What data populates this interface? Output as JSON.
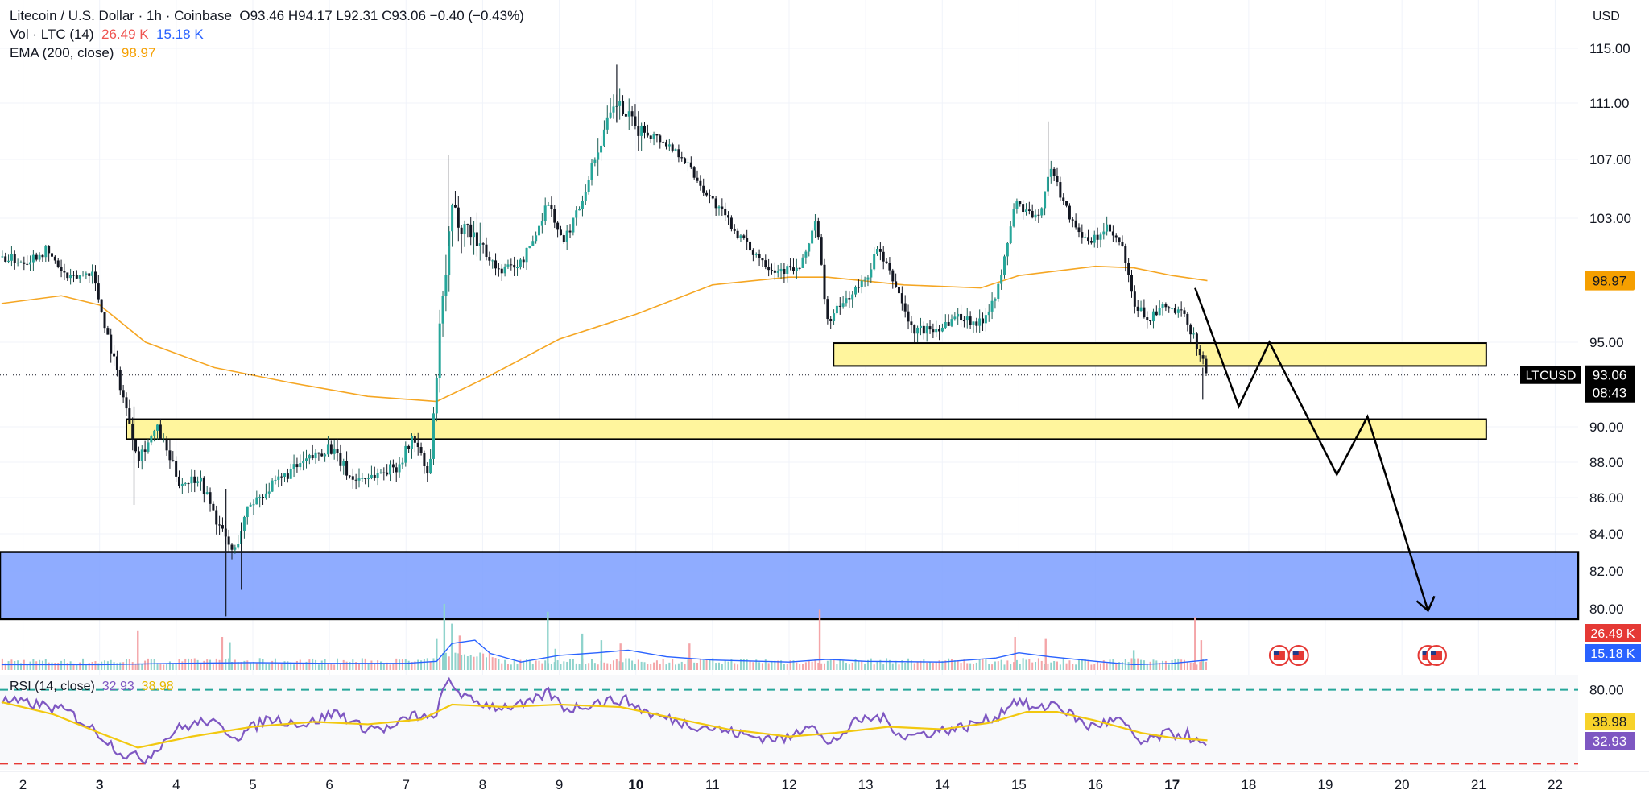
{
  "header": {
    "symbol": "Litecoin / U.S. Dollar · 1h · Coinbase",
    "ohlc": "O93.46 H94.17 L92.31 C93.06 −0.40 (−0.43%)",
    "vol_label": "Vol · LTC (14)",
    "vol_value_1": "26.49 K",
    "vol_value_2": "15.18 K",
    "ema_label": "EMA (200, close)",
    "ema_value": "98.97",
    "currency": "USD"
  },
  "rsi_legend": {
    "label": "RSI (14, close)",
    "rsi_value": "32.93",
    "ma_value": "38.98"
  },
  "colors": {
    "up": "#26a69a",
    "down": "#131722",
    "ema": "#f5a623",
    "zone_fill": "#fff59d",
    "demand_fill": "#7b9dff",
    "vol_up": "#8fd3cc",
    "vol_down": "#f4a5a8",
    "vol_ma": "#2962ff",
    "rsi": "#7e57c2",
    "rsi_ma": "#f2c80f"
  },
  "chart_data": {
    "type": "candlestick",
    "x_range": [
      1.7,
      22.3
    ],
    "x_ticks": [
      {
        "x": 2,
        "label": "2",
        "bold": false
      },
      {
        "x": 3,
        "label": "3",
        "bold": true
      },
      {
        "x": 4,
        "label": "4",
        "bold": false
      },
      {
        "x": 5,
        "label": "5",
        "bold": false
      },
      {
        "x": 6,
        "label": "6",
        "bold": false
      },
      {
        "x": 7,
        "label": "7",
        "bold": false
      },
      {
        "x": 8,
        "label": "8",
        "bold": false
      },
      {
        "x": 9,
        "label": "9",
        "bold": false
      },
      {
        "x": 10,
        "label": "10",
        "bold": true
      },
      {
        "x": 11,
        "label": "11",
        "bold": false
      },
      {
        "x": 12,
        "label": "12",
        "bold": false
      },
      {
        "x": 13,
        "label": "13",
        "bold": false
      },
      {
        "x": 14,
        "label": "14",
        "bold": false
      },
      {
        "x": 15,
        "label": "15",
        "bold": false
      },
      {
        "x": 16,
        "label": "16",
        "bold": false
      },
      {
        "x": 17,
        "label": "17",
        "bold": true
      },
      {
        "x": 18,
        "label": "18",
        "bold": false
      },
      {
        "x": 19,
        "label": "19",
        "bold": false
      },
      {
        "x": 20,
        "label": "20",
        "bold": false
      },
      {
        "x": 21,
        "label": "21",
        "bold": false
      },
      {
        "x": 22,
        "label": "22",
        "bold": false
      }
    ],
    "price_axis": {
      "ticks": [
        {
          "value": 115,
          "label": "115.00"
        },
        {
          "value": 111,
          "label": "111.00"
        },
        {
          "value": 107,
          "label": "107.00"
        },
        {
          "value": 103,
          "label": "103.00"
        },
        {
          "value": 95,
          "label": "95.00"
        },
        {
          "value": 90,
          "label": "90.00"
        },
        {
          "value": 88,
          "label": "88.00"
        },
        {
          "value": 86,
          "label": "86.00"
        },
        {
          "value": 84,
          "label": "84.00"
        },
        {
          "value": 82,
          "label": "82.00"
        },
        {
          "value": 80,
          "label": "80.00"
        }
      ],
      "scale_anchors": [
        {
          "value": 115,
          "y": 60
        },
        {
          "value": 111,
          "y": 128
        },
        {
          "value": 107,
          "y": 198
        },
        {
          "value": 103,
          "y": 271
        },
        {
          "value": 99,
          "y": 348
        },
        {
          "value": 95,
          "y": 425
        },
        {
          "value": 90,
          "y": 530
        },
        {
          "value": 88,
          "y": 574
        },
        {
          "value": 86,
          "y": 618
        },
        {
          "value": 84,
          "y": 663
        },
        {
          "value": 82,
          "y": 709
        },
        {
          "value": 80,
          "y": 756
        }
      ]
    },
    "price_keypoints": [
      [
        1.72,
        100.5
      ],
      [
        2.0,
        100.2
      ],
      [
        2.3,
        100.9
      ],
      [
        2.6,
        99.0
      ],
      [
        2.9,
        99.6
      ],
      [
        3.1,
        95.5
      ],
      [
        3.25,
        92.8
      ],
      [
        3.5,
        88.3
      ],
      [
        3.75,
        89.9
      ],
      [
        4.05,
        86.8
      ],
      [
        4.3,
        87.2
      ],
      [
        4.55,
        84.5
      ],
      [
        4.75,
        82.9
      ],
      [
        4.95,
        85.6
      ],
      [
        5.15,
        86.3
      ],
      [
        5.5,
        87.5
      ],
      [
        6.0,
        88.9
      ],
      [
        6.3,
        87.0
      ],
      [
        6.6,
        87.3
      ],
      [
        6.9,
        87.8
      ],
      [
        7.1,
        89.5
      ],
      [
        7.3,
        87.0
      ],
      [
        7.45,
        96.0
      ],
      [
        7.6,
        103.4
      ],
      [
        7.9,
        101.9
      ],
      [
        8.2,
        99.6
      ],
      [
        8.5,
        100.1
      ],
      [
        8.7,
        102.0
      ],
      [
        8.85,
        104.2
      ],
      [
        9.05,
        101.3
      ],
      [
        9.3,
        104.3
      ],
      [
        9.55,
        108.5
      ],
      [
        9.75,
        111.0
      ],
      [
        10.0,
        109.2
      ],
      [
        10.3,
        108.5
      ],
      [
        10.6,
        107.3
      ],
      [
        10.85,
        105.2
      ],
      [
        11.15,
        103.2
      ],
      [
        11.45,
        101.2
      ],
      [
        11.8,
        99.7
      ],
      [
        12.15,
        99.7
      ],
      [
        12.35,
        103.0
      ],
      [
        12.5,
        96.3
      ],
      [
        12.75,
        97.8
      ],
      [
        13.0,
        99.0
      ],
      [
        13.15,
        101.0
      ],
      [
        13.4,
        98.6
      ],
      [
        13.6,
        95.8
      ],
      [
        13.9,
        95.8
      ],
      [
        14.2,
        96.7
      ],
      [
        14.5,
        96.2
      ],
      [
        14.75,
        98.7
      ],
      [
        14.95,
        104.1
      ],
      [
        15.25,
        102.8
      ],
      [
        15.4,
        106.5
      ],
      [
        15.65,
        103.3
      ],
      [
        15.9,
        101.3
      ],
      [
        16.15,
        102.3
      ],
      [
        16.35,
        101.1
      ],
      [
        16.5,
        97.4
      ],
      [
        16.7,
        96.5
      ],
      [
        16.9,
        97.3
      ],
      [
        17.15,
        96.7
      ],
      [
        17.3,
        95.2
      ],
      [
        17.46,
        93.06
      ]
    ],
    "ema_200": [
      [
        1.72,
        97.5
      ],
      [
        2.5,
        98.0
      ],
      [
        3.0,
        97.4
      ],
      [
        3.6,
        95.0
      ],
      [
        4.5,
        93.5
      ],
      [
        5.5,
        92.6
      ],
      [
        6.5,
        91.8
      ],
      [
        7.4,
        91.5
      ],
      [
        8.0,
        92.8
      ],
      [
        9.0,
        95.2
      ],
      [
        10.0,
        96.8
      ],
      [
        11.0,
        98.7
      ],
      [
        12.0,
        99.2
      ],
      [
        12.5,
        99.2
      ],
      [
        13.5,
        98.7
      ],
      [
        14.5,
        98.5
      ],
      [
        15.0,
        99.3
      ],
      [
        16.0,
        99.9
      ],
      [
        16.5,
        99.8
      ],
      [
        17.0,
        99.3
      ],
      [
        17.46,
        98.97
      ]
    ],
    "zones": [
      {
        "x0": 12.58,
        "x1": 21.1,
        "y_low": 93.6,
        "y_high": 94.95,
        "kind": "resistance"
      },
      {
        "x0": 3.35,
        "x1": 21.1,
        "y_low": 89.3,
        "y_high": 90.45,
        "kind": "resistance"
      },
      {
        "x0": 1.7,
        "x1": 22.3,
        "y_low": 79.45,
        "y_high": 83.02,
        "kind": "demand"
      }
    ],
    "projection": [
      [
        17.3,
        98.5
      ],
      [
        17.87,
        91.2
      ],
      [
        18.27,
        95.0
      ],
      [
        19.15,
        87.3
      ],
      [
        19.55,
        90.6
      ],
      [
        20.34,
        79.9
      ]
    ],
    "arrow_tip": [
      20.34,
      79.9
    ],
    "volume_axis": {
      "max": 100,
      "baseline_y": 832,
      "top_y": 750
    },
    "volume_spikes": [
      {
        "x": 3.5,
        "v": 60,
        "up": false
      },
      {
        "x": 4.6,
        "v": 50,
        "up": false
      },
      {
        "x": 4.7,
        "v": 42,
        "up": true
      },
      {
        "x": 7.4,
        "v": 48,
        "up": true
      },
      {
        "x": 7.5,
        "v": 100,
        "up": true
      },
      {
        "x": 7.6,
        "v": 70,
        "up": true
      },
      {
        "x": 7.7,
        "v": 52,
        "up": false
      },
      {
        "x": 8.85,
        "v": 88,
        "up": true
      },
      {
        "x": 8.95,
        "v": 32,
        "up": true
      },
      {
        "x": 9.3,
        "v": 55,
        "up": true
      },
      {
        "x": 9.55,
        "v": 45,
        "up": true
      },
      {
        "x": 9.8,
        "v": 40,
        "up": false
      },
      {
        "x": 10.7,
        "v": 40,
        "up": false
      },
      {
        "x": 12.4,
        "v": 92,
        "up": false
      },
      {
        "x": 14.95,
        "v": 50,
        "up": false
      },
      {
        "x": 15.35,
        "v": 48,
        "up": false
      },
      {
        "x": 16.5,
        "v": 30,
        "up": true
      },
      {
        "x": 17.3,
        "v": 80,
        "up": false
      },
      {
        "x": 17.38,
        "v": 45,
        "up": false
      }
    ],
    "volume_ma": [
      [
        1.72,
        8
      ],
      [
        3.0,
        8
      ],
      [
        4.0,
        10
      ],
      [
        5.0,
        11
      ],
      [
        6.0,
        10
      ],
      [
        7.0,
        10
      ],
      [
        7.4,
        13
      ],
      [
        7.6,
        40
      ],
      [
        7.9,
        45
      ],
      [
        8.1,
        25
      ],
      [
        8.5,
        12
      ],
      [
        9.0,
        22
      ],
      [
        9.5,
        26
      ],
      [
        9.9,
        30
      ],
      [
        10.4,
        20
      ],
      [
        11.0,
        15
      ],
      [
        12.0,
        12
      ],
      [
        12.5,
        16
      ],
      [
        13.0,
        13
      ],
      [
        14.0,
        12
      ],
      [
        14.7,
        18
      ],
      [
        15.0,
        26
      ],
      [
        15.4,
        20
      ],
      [
        16.0,
        13
      ],
      [
        16.5,
        8
      ],
      [
        17.0,
        10
      ],
      [
        17.46,
        15
      ]
    ],
    "event_icons_x": [
      18.4,
      18.65,
      20.34,
      20.45
    ],
    "rsi_axis": {
      "ticks": [
        {
          "value": 80,
          "label": "80.00"
        }
      ],
      "upper": 80,
      "lower": 20,
      "y_at_100": 826,
      "y_at_0": 979
    },
    "rsi_keypoints": [
      [
        1.72,
        71
      ],
      [
        2.2,
        68
      ],
      [
        2.6,
        62
      ],
      [
        3.0,
        44
      ],
      [
        3.3,
        28
      ],
      [
        3.6,
        24
      ],
      [
        4.0,
        48
      ],
      [
        4.4,
        55
      ],
      [
        4.8,
        42
      ],
      [
        5.2,
        57
      ],
      [
        5.7,
        52
      ],
      [
        6.1,
        62
      ],
      [
        6.4,
        50
      ],
      [
        6.8,
        48
      ],
      [
        7.1,
        60
      ],
      [
        7.35,
        55
      ],
      [
        7.55,
        88
      ],
      [
        7.8,
        72
      ],
      [
        8.2,
        66
      ],
      [
        8.6,
        68
      ],
      [
        8.85,
        78
      ],
      [
        9.1,
        64
      ],
      [
        9.5,
        70
      ],
      [
        9.85,
        72
      ],
      [
        10.2,
        60
      ],
      [
        10.7,
        52
      ],
      [
        11.0,
        49
      ],
      [
        11.5,
        42
      ],
      [
        12.0,
        40
      ],
      [
        12.3,
        55
      ],
      [
        12.5,
        34
      ],
      [
        12.9,
        55
      ],
      [
        13.2,
        58
      ],
      [
        13.5,
        42
      ],
      [
        13.9,
        46
      ],
      [
        14.3,
        50
      ],
      [
        14.7,
        58
      ],
      [
        14.95,
        72
      ],
      [
        15.25,
        63
      ],
      [
        15.45,
        70
      ],
      [
        15.9,
        50
      ],
      [
        16.3,
        56
      ],
      [
        16.6,
        36
      ],
      [
        16.9,
        44
      ],
      [
        17.2,
        44
      ],
      [
        17.3,
        38
      ],
      [
        17.46,
        32.93
      ]
    ],
    "rsi_ma_keypoints": [
      [
        1.72,
        70
      ],
      [
        2.4,
        60
      ],
      [
        3.0,
        45
      ],
      [
        3.5,
        33
      ],
      [
        4.2,
        42
      ],
      [
        5.0,
        50
      ],
      [
        5.8,
        54
      ],
      [
        6.5,
        52
      ],
      [
        7.2,
        56
      ],
      [
        7.6,
        68
      ],
      [
        8.3,
        66
      ],
      [
        9.0,
        68
      ],
      [
        9.8,
        66
      ],
      [
        10.5,
        57
      ],
      [
        11.2,
        48
      ],
      [
        12.0,
        42
      ],
      [
        12.6,
        45
      ],
      [
        13.3,
        50
      ],
      [
        14.0,
        48
      ],
      [
        14.6,
        53
      ],
      [
        15.1,
        62
      ],
      [
        15.5,
        62
      ],
      [
        16.0,
        55
      ],
      [
        16.6,
        45
      ],
      [
        17.0,
        41
      ],
      [
        17.46,
        38.98
      ]
    ]
  },
  "price_labels": {
    "ema": {
      "value": 98.97,
      "text": "98.97"
    },
    "last": {
      "value": 93.06,
      "ticker": "LTCUSD",
      "price": "93.06",
      "countdown": "08:43"
    }
  },
  "volume_labels": [
    {
      "text": "26.49 K",
      "kind": "red"
    },
    {
      "text": "15.18 K",
      "kind": "blue"
    }
  ],
  "rsi_labels": [
    {
      "text": "38.98",
      "kind": "ma"
    },
    {
      "text": "32.93",
      "kind": "rsi"
    }
  ]
}
